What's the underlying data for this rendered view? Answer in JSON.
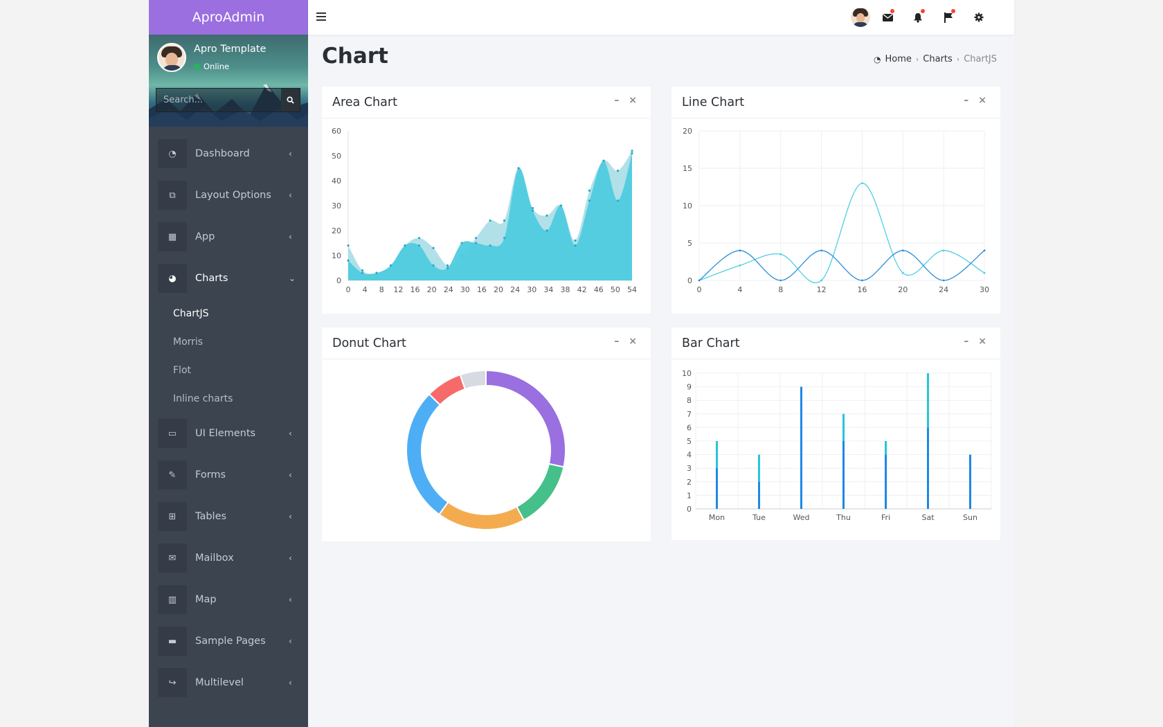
{
  "brand": "AproAdmin",
  "user": {
    "name": "Apro Template",
    "status": "Online"
  },
  "search": {
    "placeholder": "Search..."
  },
  "menu": [
    {
      "label": "Dashboard",
      "icon": "dashboard-icon"
    },
    {
      "label": "Layout Options",
      "icon": "copy-icon"
    },
    {
      "label": "App",
      "icon": "grid-icon"
    },
    {
      "label": "Charts",
      "icon": "pie-chart-icon",
      "active": true,
      "submenu": [
        {
          "label": "ChartJS",
          "active": true
        },
        {
          "label": "Morris"
        },
        {
          "label": "Flot"
        },
        {
          "label": "Inline charts"
        }
      ]
    },
    {
      "label": "UI Elements",
      "icon": "laptop-icon"
    },
    {
      "label": "Forms",
      "icon": "edit-icon"
    },
    {
      "label": "Tables",
      "icon": "table-icon"
    },
    {
      "label": "Mailbox",
      "icon": "envelope-icon"
    },
    {
      "label": "Map",
      "icon": "map-icon"
    },
    {
      "label": "Sample Pages",
      "icon": "folder-icon"
    },
    {
      "label": "Multilevel",
      "icon": "share-icon"
    }
  ],
  "page": {
    "title": "Chart"
  },
  "breadcrumb": {
    "home": "Home",
    "section": "Charts",
    "current": "ChartJS"
  },
  "boxes": {
    "area": {
      "title": "Area Chart"
    },
    "line": {
      "title": "Line Chart"
    },
    "donut": {
      "title": "Donut Chart"
    },
    "bar": {
      "title": "Bar Chart"
    }
  },
  "colors": {
    "brand": "#9b6fe0",
    "sidebar": "#3c4450",
    "area1": "#4fcbe0",
    "area2": "#a8dde6",
    "line1": "#4dcfe3",
    "line2": "#2b8fd8",
    "bar1": "#1e88e5",
    "bar2": "#26c6da"
  },
  "chart_data": [
    {
      "type": "area",
      "title": "Area Chart",
      "x_ticks": [
        "0",
        "4",
        "8",
        "12",
        "16",
        "20",
        "24",
        "30",
        "16",
        "20",
        "24",
        "30",
        "34",
        "38",
        "42",
        "46",
        "50",
        "54"
      ],
      "ylim": [
        0,
        60
      ],
      "y_ticks": [
        0,
        10,
        20,
        30,
        40,
        50,
        60
      ],
      "series": [
        {
          "values": [
            14,
            4,
            3,
            6,
            14,
            17,
            13,
            6,
            10,
            17,
            24,
            24,
            45,
            29,
            26,
            30,
            16,
            36,
            48,
            44,
            52
          ]
        },
        {
          "values": [
            8,
            3,
            3,
            6,
            14,
            14,
            6,
            5,
            15,
            15,
            14,
            17,
            45,
            28,
            20,
            30,
            14,
            32,
            48,
            32,
            51
          ]
        }
      ]
    },
    {
      "type": "line",
      "title": "Line Chart",
      "x_ticks": [
        0,
        4,
        8,
        12,
        16,
        20,
        24,
        30
      ],
      "ylim": [
        0,
        20
      ],
      "y_ticks": [
        0,
        5,
        10,
        15,
        20
      ],
      "series": [
        {
          "values": [
            0,
            2,
            3.5,
            0,
            13,
            1,
            4,
            1
          ]
        },
        {
          "values": [
            0,
            4,
            0,
            4,
            0,
            4,
            0,
            4
          ]
        }
      ]
    },
    {
      "type": "pie",
      "title": "Donut Chart",
      "values": [
        27,
        13,
        17,
        26,
        7,
        5
      ],
      "colors": [
        "#9a6fe0",
        "#45c08a",
        "#f4ab4f",
        "#4eaef5",
        "#f66a6a",
        "#d6dbe2"
      ]
    },
    {
      "type": "bar",
      "title": "Bar Chart",
      "categories": [
        "Mon",
        "Tue",
        "Wed",
        "Thu",
        "Fri",
        "Sat",
        "Sun"
      ],
      "ylim": [
        0,
        10
      ],
      "y_ticks": [
        0,
        1,
        2,
        3,
        4,
        5,
        6,
        7,
        8,
        9,
        10
      ],
      "series": [
        {
          "values": [
            3,
            2,
            9,
            5,
            4,
            6,
            4
          ]
        },
        {
          "values": [
            2,
            2,
            0,
            2,
            1,
            4,
            0
          ]
        }
      ]
    }
  ]
}
